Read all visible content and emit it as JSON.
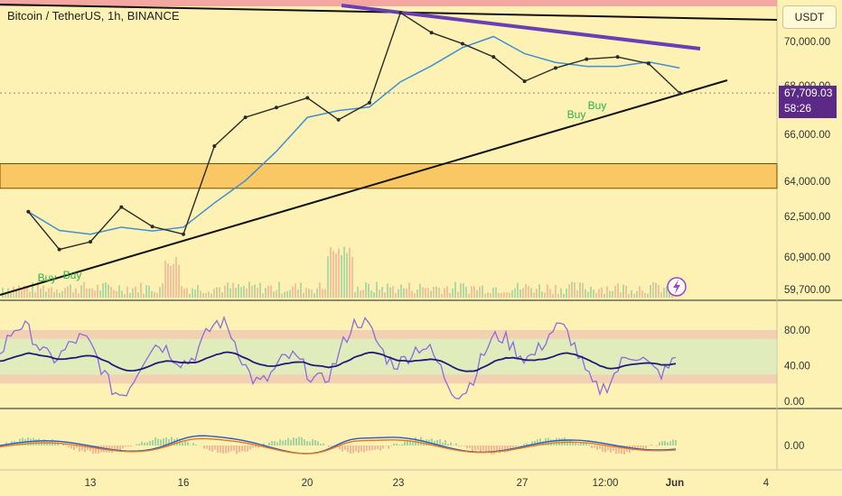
{
  "title": "Bitcoin / TetherUS, 1h, BINANCE",
  "currency_button": "USDT",
  "last_price": "67,709.03",
  "countdown": "58:26",
  "colors": {
    "bg": "#fdf2b3",
    "purple_trend": "#6a3fb5",
    "zone": "#f7b94b",
    "rsi_fast": "#8b6be0",
    "rsi_slow": "#1f1a7a"
  },
  "chart_data": [
    {
      "type": "line",
      "name": "price",
      "title": "Bitcoin / TetherUS, 1h, BINANCE",
      "x_ticks": [
        "13",
        "16",
        "20",
        "23",
        "27",
        "12:00",
        "Jun",
        "4"
      ],
      "y_ticks": [
        70000,
        68000,
        66000,
        64000,
        62500,
        60900,
        59700
      ],
      "y_tick_labels": [
        "70,000.00",
        "68,000.00",
        "66,000.00",
        "64,000.00",
        "62,500.00",
        "60,900.00",
        "59,700.00"
      ],
      "x": [
        11,
        12,
        13,
        14,
        15,
        16,
        17,
        18,
        19,
        20,
        21,
        22,
        23,
        24,
        25,
        26,
        27,
        28,
        29,
        30,
        31,
        32
      ],
      "values": [
        62700,
        61200,
        61500,
        62900,
        62100,
        61800,
        65500,
        66700,
        67100,
        67500,
        66600,
        67300,
        71300,
        70400,
        69900,
        69300,
        68200,
        68800,
        69200,
        69300,
        69000,
        67700
      ],
      "buy_labels": [
        "Buy",
        "Buy",
        "Buy",
        "Buy"
      ],
      "zone": [
        63700,
        64750
      ],
      "ylim": [
        59700,
        71300
      ]
    },
    {
      "type": "line",
      "name": "oscillator",
      "y_ticks": [
        80,
        40,
        0
      ],
      "y_tick_labels": [
        "80.00",
        "40.00",
        "0.00"
      ],
      "ylim": [
        0,
        100
      ]
    },
    {
      "type": "line",
      "name": "macd",
      "y_ticks": [
        0
      ],
      "y_tick_labels": [
        "0.00"
      ]
    }
  ]
}
